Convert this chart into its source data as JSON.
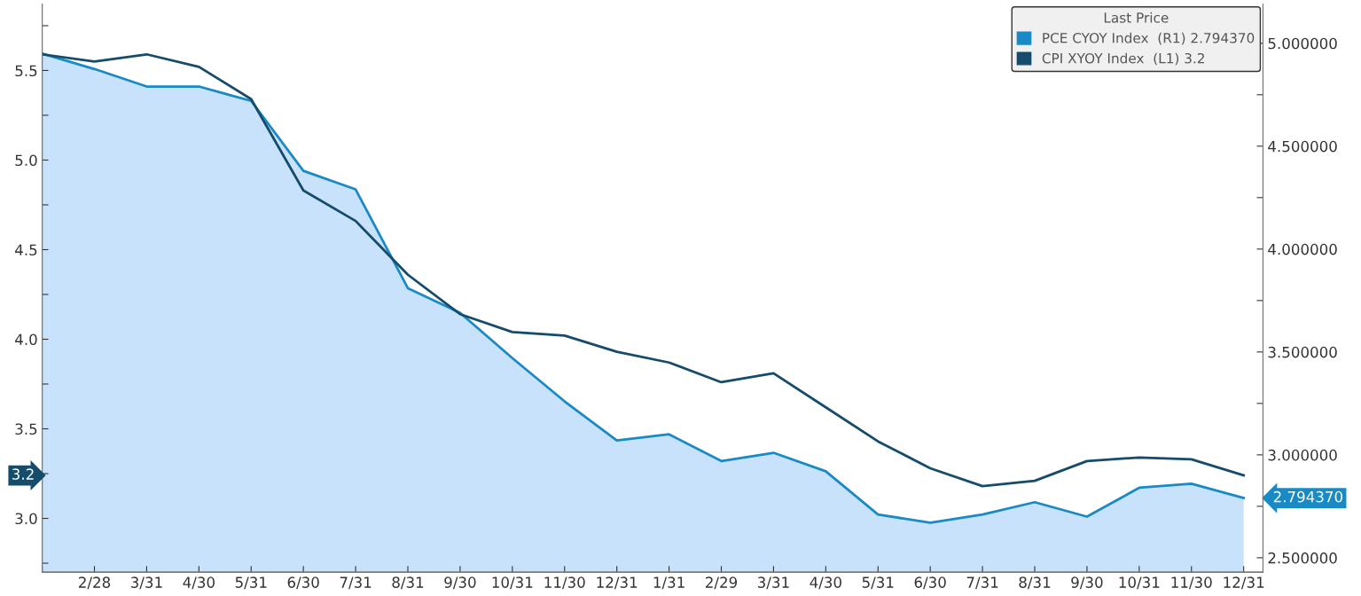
{
  "chart_data": {
    "type": "line",
    "categories": [
      null,
      "2/28",
      "3/31",
      "4/30",
      "5/31",
      "6/30",
      "7/31",
      "8/31",
      "9/30",
      "10/31",
      "11/30",
      "12/31",
      "1/31",
      "2/29",
      "3/31",
      "4/30",
      "5/31",
      "6/30",
      "7/31",
      "8/31",
      "9/30",
      "10/31",
      "11/30",
      "12/31"
    ],
    "series": [
      {
        "name": "PCE CYOY Index  (R1) 2.794370",
        "type": "area",
        "axis": "y2",
        "color": "#1a8ac6",
        "values": [
          4.95,
          4.875,
          4.79,
          4.79,
          4.72,
          4.38,
          4.29,
          3.81,
          3.69,
          3.47,
          3.26,
          3.07,
          3.1,
          2.97,
          3.01,
          2.92,
          2.71,
          2.67,
          2.71,
          2.77,
          2.7,
          2.84,
          2.86,
          2.79
        ]
      },
      {
        "name": "CPI XYOY Index  (L1) 3.2",
        "color": "#154c6b",
        "values": [
          5.59,
          5.55,
          5.59,
          5.52,
          5.34,
          4.83,
          4.66,
          4.36,
          4.14,
          4.04,
          4.02,
          3.93,
          3.87,
          3.76,
          3.81,
          3.62,
          3.43,
          3.28,
          3.18,
          3.21,
          3.32,
          3.34,
          3.33,
          3.24
        ]
      }
    ],
    "ylim": [
      2.7,
      5.87
    ],
    "yticks": [
      {
        "value": 2.75,
        "label": null
      },
      {
        "value": 3.0,
        "label": "3.0"
      },
      {
        "value": 3.25,
        "label": null
      },
      3.5,
      {
        "value": 3.75,
        "label": null
      },
      {
        "value": 4.0,
        "label": "4.0"
      },
      {
        "value": 4.25,
        "label": null
      },
      4.5,
      {
        "value": 4.75,
        "label": null
      },
      {
        "value": 5.0,
        "label": "5.0"
      },
      {
        "value": 5.25,
        "label": null
      },
      5.5,
      {
        "value": 5.75,
        "label": null
      }
    ],
    "y2lim": [
      2.43,
      5.19
    ],
    "y2ticks": [
      {
        "value": 2.5,
        "label": "2.500000"
      },
      {
        "value": 2.75,
        "label": null
      },
      {
        "value": 3.0,
        "label": "3.000000"
      },
      {
        "value": 3.25,
        "label": null
      },
      {
        "value": 3.5,
        "label": "3.500000"
      },
      {
        "value": 3.75,
        "label": null
      },
      {
        "value": 4.0,
        "label": "4.000000"
      },
      {
        "value": 4.25,
        "label": null
      },
      {
        "value": 4.5,
        "label": "4.500000"
      },
      {
        "value": 4.75,
        "label": null
      },
      {
        "value": 5.0,
        "label": "5.000000"
      }
    ],
    "legend_title": "Last Price",
    "legend": "top right",
    "grid": false,
    "annotations": [
      "3.2",
      "2.794370"
    ]
  }
}
